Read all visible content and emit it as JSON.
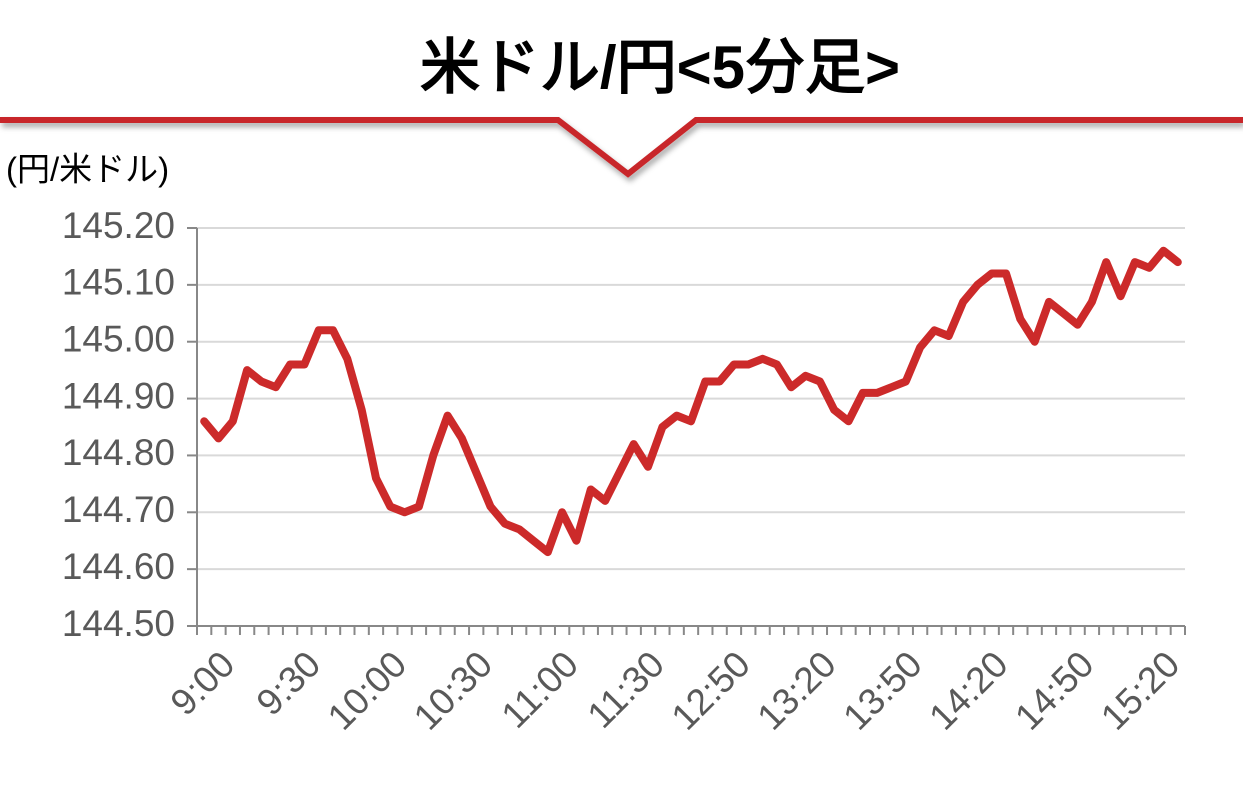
{
  "chart_data": {
    "type": "line",
    "title": "米ドル/円<5分足>",
    "y_label": "(円/米ドル)",
    "categories": [
      "9:00",
      null,
      null,
      null,
      null,
      null,
      "9:30",
      null,
      null,
      null,
      null,
      null,
      "10:00",
      null,
      null,
      null,
      null,
      null,
      "10:30",
      null,
      null,
      null,
      null,
      null,
      "11:00",
      null,
      null,
      null,
      null,
      null,
      "11:30",
      null,
      null,
      null,
      null,
      null,
      "12:50",
      null,
      null,
      null,
      null,
      null,
      "13:20",
      null,
      null,
      null,
      null,
      null,
      "13:50",
      null,
      null,
      null,
      null,
      null,
      "14:20",
      null,
      null,
      null,
      null,
      null,
      "14:50",
      null,
      null,
      null,
      null,
      null,
      "15:20",
      null,
      null
    ],
    "values": [
      144.86,
      144.83,
      144.86,
      144.95,
      144.93,
      144.92,
      144.96,
      144.96,
      145.02,
      145.02,
      144.97,
      144.88,
      144.76,
      144.71,
      144.7,
      144.71,
      144.8,
      144.87,
      144.83,
      144.77,
      144.71,
      144.68,
      144.67,
      144.65,
      144.63,
      144.7,
      144.65,
      144.74,
      144.72,
      144.77,
      144.82,
      144.78,
      144.85,
      144.87,
      144.86,
      144.93,
      144.93,
      144.96,
      144.96,
      144.97,
      144.96,
      144.92,
      144.94,
      144.93,
      144.88,
      144.86,
      144.91,
      144.91,
      144.92,
      144.93,
      144.99,
      145.02,
      145.01,
      145.07,
      145.1,
      145.12,
      145.12,
      145.04,
      145.0,
      145.07,
      145.05,
      145.03,
      145.07,
      145.14,
      145.08,
      145.14,
      145.13,
      145.16,
      145.14
    ],
    "color": "#cc2a2a",
    "ylim": [
      144.5,
      145.2
    ],
    "yticks": [
      {
        "value": 144.5,
        "label": "144.50"
      },
      {
        "value": 144.6,
        "label": "144.60"
      },
      {
        "value": 144.7,
        "label": "144.70"
      },
      {
        "value": 144.8,
        "label": "144.80"
      },
      {
        "value": 144.9,
        "label": "144.90"
      },
      {
        "value": 145.0,
        "label": "145.00"
      },
      {
        "value": 145.1,
        "label": "145.10"
      },
      {
        "value": 145.2,
        "label": "145.20"
      }
    ],
    "grid": true
  }
}
